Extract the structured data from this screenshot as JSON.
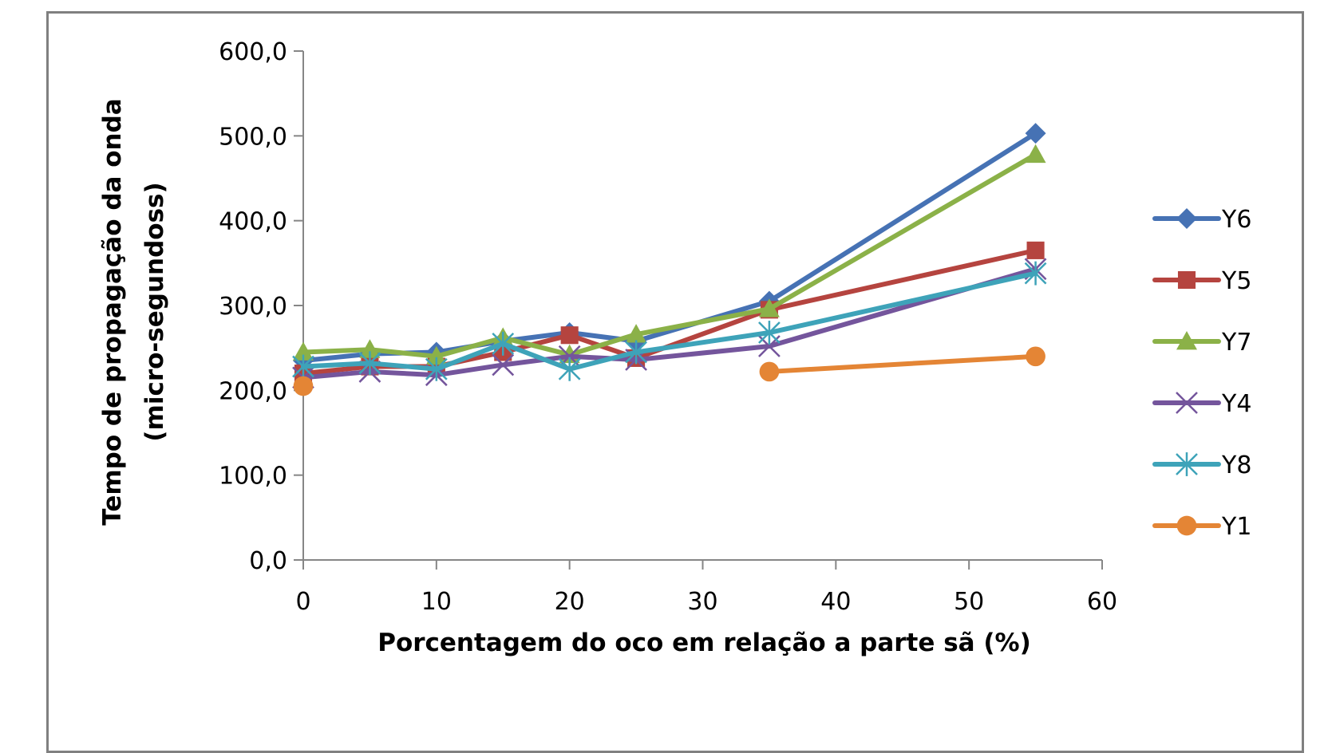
{
  "chart_data": {
    "type": "line",
    "xlabel": "Porcentagem do oco em relação a parte sã (%)",
    "ylabel_line1": "Tempo de propagação da onda",
    "ylabel_line2": "(micro-segundoss)",
    "xlim": [
      0,
      60
    ],
    "ylim": [
      0,
      600
    ],
    "x_ticks": [
      0,
      10,
      20,
      30,
      40,
      50,
      60
    ],
    "x_tick_labels": [
      "0",
      "10",
      "20",
      "30",
      "40",
      "50",
      "60"
    ],
    "y_ticks": [
      0,
      100,
      200,
      300,
      400,
      500,
      600
    ],
    "y_tick_labels": [
      "0,0",
      "100,0",
      "200,0",
      "300,0",
      "400,0",
      "500,0",
      "600,0"
    ],
    "grid": false,
    "legend_position": "right",
    "series": [
      {
        "name": "Y6",
        "color": "#4672B4",
        "marker": "diamond",
        "x": [
          0,
          5,
          10,
          15,
          20,
          25,
          35,
          55
        ],
        "y": [
          235,
          243,
          245,
          258,
          268,
          258,
          305,
          503
        ]
      },
      {
        "name": "Y5",
        "color": "#B5443F",
        "marker": "square",
        "x": [
          0,
          5,
          10,
          15,
          20,
          25,
          35,
          55
        ],
        "y": [
          220,
          228,
          228,
          245,
          265,
          238,
          295,
          365
        ]
      },
      {
        "name": "Y7",
        "color": "#8BB148",
        "marker": "triangle",
        "x": [
          0,
          5,
          10,
          15,
          20,
          25,
          35,
          55
        ],
        "y": [
          245,
          248,
          240,
          262,
          242,
          266,
          296,
          478
        ]
      },
      {
        "name": "Y4",
        "color": "#74559C",
        "marker": "x",
        "x": [
          0,
          5,
          10,
          15,
          20,
          25,
          35,
          55
        ],
        "y": [
          215,
          222,
          218,
          230,
          240,
          236,
          252,
          343
        ]
      },
      {
        "name": "Y8",
        "color": "#3EA3B9",
        "marker": "asterisk",
        "x": [
          0,
          5,
          10,
          15,
          20,
          25,
          35,
          55
        ],
        "y": [
          228,
          232,
          225,
          255,
          225,
          245,
          268,
          338
        ]
      },
      {
        "name": "Y1",
        "color": "#E48535",
        "marker": "circle",
        "x": [
          0,
          35,
          55
        ],
        "y": [
          205,
          222,
          240
        ],
        "segments": [
          [
            0
          ],
          [
            35,
            55
          ]
        ]
      }
    ]
  }
}
